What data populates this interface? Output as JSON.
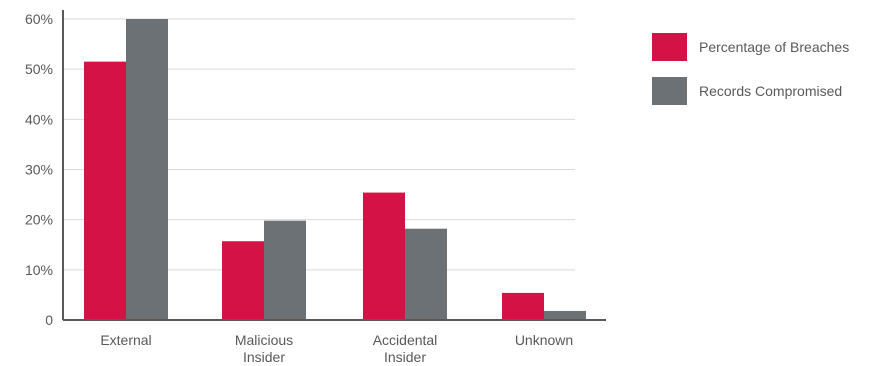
{
  "chart_data": {
    "type": "bar",
    "categories": [
      "External",
      "Malicious Insider",
      "Accidental Insider",
      "Unknown"
    ],
    "category_lines": [
      [
        "External"
      ],
      [
        "Malicious",
        "Insider"
      ],
      [
        "Accidental",
        "Insider"
      ],
      [
        "Unknown"
      ]
    ],
    "series": [
      {
        "name": "Percentage of Breaches",
        "color": "#d41245",
        "values": [
          51.5,
          15.7,
          25.4,
          5.4
        ]
      },
      {
        "name": "Records Compromised",
        "color": "#6b7175",
        "values": [
          60,
          19.8,
          18.2,
          1.8
        ]
      }
    ],
    "y_ticks": [
      0,
      10,
      20,
      30,
      40,
      50,
      60
    ],
    "y_tick_labels": [
      "0",
      "10%",
      "20%",
      "30%",
      "40%",
      "50%",
      "60%"
    ],
    "ylim": [
      0,
      60
    ],
    "grid": true,
    "legend_position": "right",
    "title": "",
    "xlabel": "",
    "ylabel": ""
  }
}
